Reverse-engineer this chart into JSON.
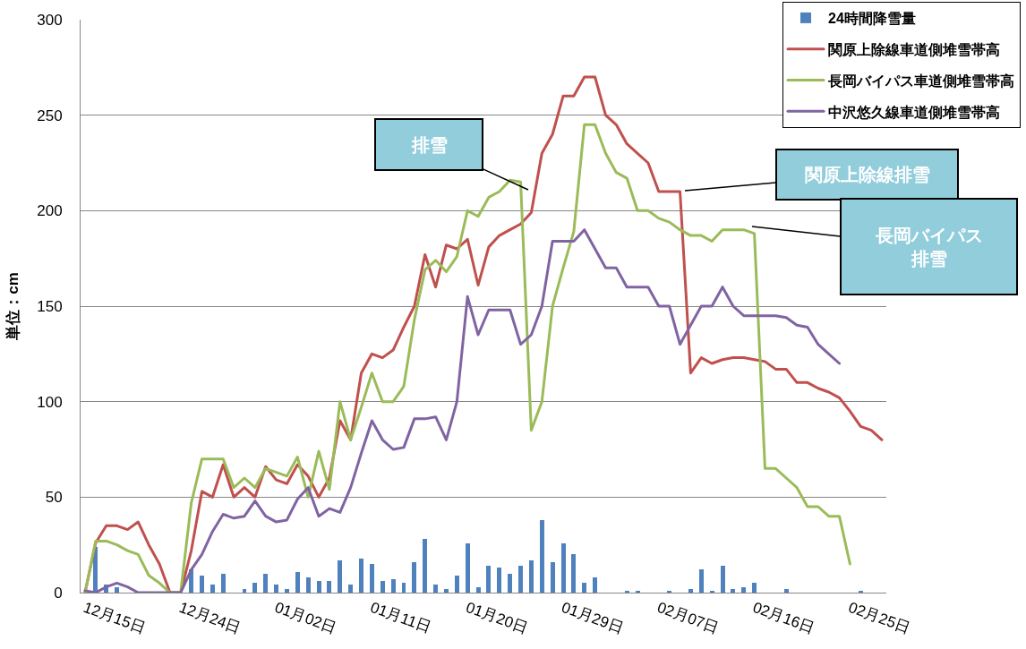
{
  "chart_data": {
    "type": "line",
    "categories": [
      "12月15日",
      null,
      null,
      null,
      null,
      null,
      null,
      null,
      null,
      "12月24日",
      null,
      null,
      null,
      null,
      null,
      null,
      null,
      null,
      "01月02日",
      null,
      null,
      null,
      null,
      null,
      null,
      null,
      null,
      "01月11日",
      null,
      null,
      null,
      null,
      null,
      null,
      null,
      null,
      "01月20日",
      null,
      null,
      null,
      null,
      null,
      null,
      null,
      null,
      "01月29日",
      null,
      null,
      null,
      null,
      null,
      null,
      null,
      null,
      "02月07日",
      null,
      null,
      null,
      null,
      null,
      null,
      null,
      null,
      "02月16日",
      null,
      null,
      null,
      null,
      null,
      null,
      null,
      null,
      "02月25日",
      null,
      null,
      null
    ],
    "series": [
      {
        "name": "24時間降雪量",
        "type": "bar",
        "color": "#4f81bd",
        "values": [
          null,
          24,
          4,
          3,
          null,
          null,
          null,
          null,
          null,
          null,
          12,
          9,
          4,
          10,
          null,
          2,
          5,
          10,
          4,
          2,
          11,
          8,
          6,
          6,
          17,
          4,
          18,
          15,
          6,
          7,
          5,
          16,
          28,
          4,
          2,
          9,
          26,
          3,
          14,
          13,
          10,
          14,
          17,
          38,
          16,
          26,
          20,
          5,
          8,
          null,
          null,
          1,
          1,
          null,
          null,
          1,
          null,
          2,
          12,
          1,
          14,
          2,
          3,
          5,
          null,
          null,
          2,
          null,
          null,
          null,
          null,
          null,
          null,
          1,
          null,
          null
        ]
      },
      {
        "name": "関原上除線車道側堆雪帯高",
        "color": "#c0504d",
        "values": [
          0,
          26,
          35,
          35,
          33,
          37,
          25,
          15,
          0,
          0,
          22,
          53,
          50,
          67,
          50,
          55,
          50,
          66,
          59,
          57,
          67,
          61,
          50,
          60,
          90,
          80,
          115,
          125,
          123,
          127,
          139,
          150,
          177,
          160,
          182,
          180,
          185,
          161,
          181,
          187,
          190,
          193,
          199,
          230,
          240,
          260,
          260,
          270,
          270,
          250,
          245,
          235,
          230,
          225,
          210,
          210,
          210,
          115,
          123,
          120,
          122,
          123,
          123,
          122,
          121,
          117,
          117,
          110,
          110,
          107,
          105,
          102,
          95,
          87,
          85,
          80
        ]
      },
      {
        "name": "長岡バイパス車道側堆雪帯高",
        "color": "#9bbb59",
        "values": [
          0,
          27,
          27,
          25,
          22,
          20,
          9,
          5,
          0,
          0,
          47,
          70,
          70,
          70,
          55,
          60,
          55,
          65,
          63,
          61,
          71,
          50,
          74,
          54,
          100,
          80,
          97,
          115,
          100,
          100,
          108,
          143,
          169,
          174,
          168,
          176,
          200,
          197,
          207,
          210,
          216,
          215,
          85,
          100,
          150,
          170,
          189,
          245,
          245,
          230,
          220,
          217,
          200,
          200,
          196,
          194,
          190,
          187,
          187,
          184,
          190,
          190,
          190,
          188,
          65,
          65,
          60,
          55,
          45,
          45,
          40,
          40,
          15,
          null,
          null,
          null
        ]
      },
      {
        "name": "中沢悠久線車道側堆雪帯高",
        "color": "#8064a2",
        "values": [
          1,
          0,
          3,
          5,
          3,
          0,
          0,
          0,
          0,
          0,
          12,
          20,
          32,
          41,
          39,
          40,
          48,
          40,
          37,
          38,
          49,
          55,
          40,
          44,
          42,
          55,
          73,
          90,
          80,
          75,
          76,
          91,
          91,
          92,
          80,
          100,
          155,
          135,
          148,
          148,
          148,
          130,
          135,
          150,
          184,
          184,
          184,
          190,
          180,
          170,
          170,
          160,
          160,
          160,
          150,
          150,
          130,
          140,
          150,
          150,
          160,
          150,
          145,
          145,
          145,
          145,
          144,
          140,
          139,
          130,
          125,
          120,
          null,
          null,
          null,
          null
        ]
      }
    ],
    "ylabel": "単位：cm",
    "ylim": [
      0,
      300
    ],
    "yticks": [
      0,
      50,
      100,
      150,
      200,
      250,
      300
    ],
    "grid": "y",
    "legend": "top right",
    "annotations": [
      "排雪",
      "関原上除線排雪",
      "長岡バイパス排雪"
    ]
  }
}
